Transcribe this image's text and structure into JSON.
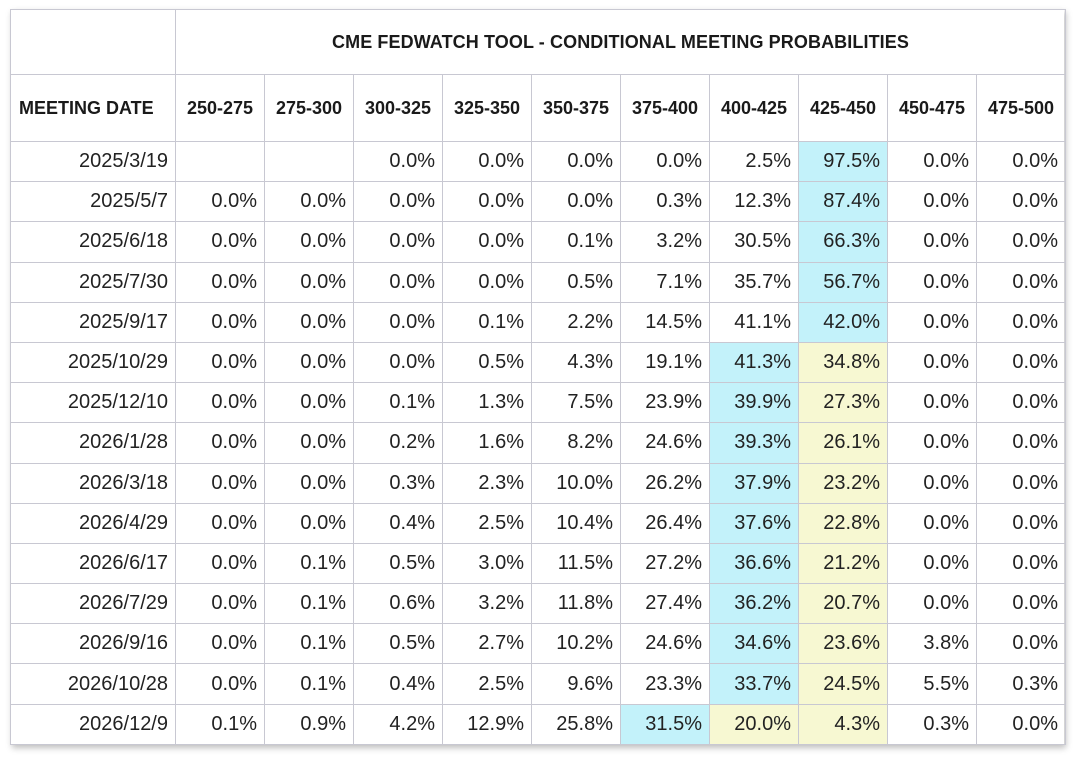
{
  "title": "CME FEDWATCH TOOL - CONDITIONAL MEETING PROBABILITIES",
  "header": {
    "date_label": "MEETING DATE",
    "ranges": [
      "250-275",
      "275-300",
      "300-325",
      "325-350",
      "350-375",
      "375-400",
      "400-425",
      "425-450",
      "450-475",
      "475-500"
    ]
  },
  "colors": {
    "highlight_blue": "#c3f2fa",
    "highlight_yellow": "#f7f8d2",
    "border": "#c8c8d2"
  },
  "rows": [
    {
      "date": "2025/3/19",
      "values": [
        "",
        "",
        "0.0%",
        "0.0%",
        "0.0%",
        "0.0%",
        "2.5%",
        "97.5%",
        "0.0%",
        "0.0%"
      ],
      "highlight": {
        "7": "blue"
      }
    },
    {
      "date": "2025/5/7",
      "values": [
        "0.0%",
        "0.0%",
        "0.0%",
        "0.0%",
        "0.0%",
        "0.3%",
        "12.3%",
        "87.4%",
        "0.0%",
        "0.0%"
      ],
      "highlight": {
        "7": "blue"
      }
    },
    {
      "date": "2025/6/18",
      "values": [
        "0.0%",
        "0.0%",
        "0.0%",
        "0.0%",
        "0.1%",
        "3.2%",
        "30.5%",
        "66.3%",
        "0.0%",
        "0.0%"
      ],
      "highlight": {
        "7": "blue"
      }
    },
    {
      "date": "2025/7/30",
      "values": [
        "0.0%",
        "0.0%",
        "0.0%",
        "0.0%",
        "0.5%",
        "7.1%",
        "35.7%",
        "56.7%",
        "0.0%",
        "0.0%"
      ],
      "highlight": {
        "7": "blue"
      }
    },
    {
      "date": "2025/9/17",
      "values": [
        "0.0%",
        "0.0%",
        "0.0%",
        "0.1%",
        "2.2%",
        "14.5%",
        "41.1%",
        "42.0%",
        "0.0%",
        "0.0%"
      ],
      "highlight": {
        "7": "blue"
      }
    },
    {
      "date": "2025/10/29",
      "values": [
        "0.0%",
        "0.0%",
        "0.0%",
        "0.5%",
        "4.3%",
        "19.1%",
        "41.3%",
        "34.8%",
        "0.0%",
        "0.0%"
      ],
      "highlight": {
        "6": "blue",
        "7": "yellow"
      }
    },
    {
      "date": "2025/12/10",
      "values": [
        "0.0%",
        "0.0%",
        "0.1%",
        "1.3%",
        "7.5%",
        "23.9%",
        "39.9%",
        "27.3%",
        "0.0%",
        "0.0%"
      ],
      "highlight": {
        "6": "blue",
        "7": "yellow"
      }
    },
    {
      "date": "2026/1/28",
      "values": [
        "0.0%",
        "0.0%",
        "0.2%",
        "1.6%",
        "8.2%",
        "24.6%",
        "39.3%",
        "26.1%",
        "0.0%",
        "0.0%"
      ],
      "highlight": {
        "6": "blue",
        "7": "yellow"
      }
    },
    {
      "date": "2026/3/18",
      "values": [
        "0.0%",
        "0.0%",
        "0.3%",
        "2.3%",
        "10.0%",
        "26.2%",
        "37.9%",
        "23.2%",
        "0.0%",
        "0.0%"
      ],
      "highlight": {
        "6": "blue",
        "7": "yellow"
      }
    },
    {
      "date": "2026/4/29",
      "values": [
        "0.0%",
        "0.0%",
        "0.4%",
        "2.5%",
        "10.4%",
        "26.4%",
        "37.6%",
        "22.8%",
        "0.0%",
        "0.0%"
      ],
      "highlight": {
        "6": "blue",
        "7": "yellow"
      }
    },
    {
      "date": "2026/6/17",
      "values": [
        "0.0%",
        "0.1%",
        "0.5%",
        "3.0%",
        "11.5%",
        "27.2%",
        "36.6%",
        "21.2%",
        "0.0%",
        "0.0%"
      ],
      "highlight": {
        "6": "blue",
        "7": "yellow"
      }
    },
    {
      "date": "2026/7/29",
      "values": [
        "0.0%",
        "0.1%",
        "0.6%",
        "3.2%",
        "11.8%",
        "27.4%",
        "36.2%",
        "20.7%",
        "0.0%",
        "0.0%"
      ],
      "highlight": {
        "6": "blue",
        "7": "yellow"
      }
    },
    {
      "date": "2026/9/16",
      "values": [
        "0.0%",
        "0.1%",
        "0.5%",
        "2.7%",
        "10.2%",
        "24.6%",
        "34.6%",
        "23.6%",
        "3.8%",
        "0.0%"
      ],
      "highlight": {
        "6": "blue",
        "7": "yellow"
      }
    },
    {
      "date": "2026/10/28",
      "values": [
        "0.0%",
        "0.1%",
        "0.4%",
        "2.5%",
        "9.6%",
        "23.3%",
        "33.7%",
        "24.5%",
        "5.5%",
        "0.3%"
      ],
      "highlight": {
        "6": "blue",
        "7": "yellow"
      }
    },
    {
      "date": "2026/12/9",
      "values": [
        "0.1%",
        "0.9%",
        "4.2%",
        "12.9%",
        "25.8%",
        "31.5%",
        "20.0%",
        "4.3%",
        "0.3%",
        "0.0%"
      ],
      "highlight": {
        "5": "blue",
        "6": "yellow",
        "7": "yellow"
      }
    }
  ]
}
